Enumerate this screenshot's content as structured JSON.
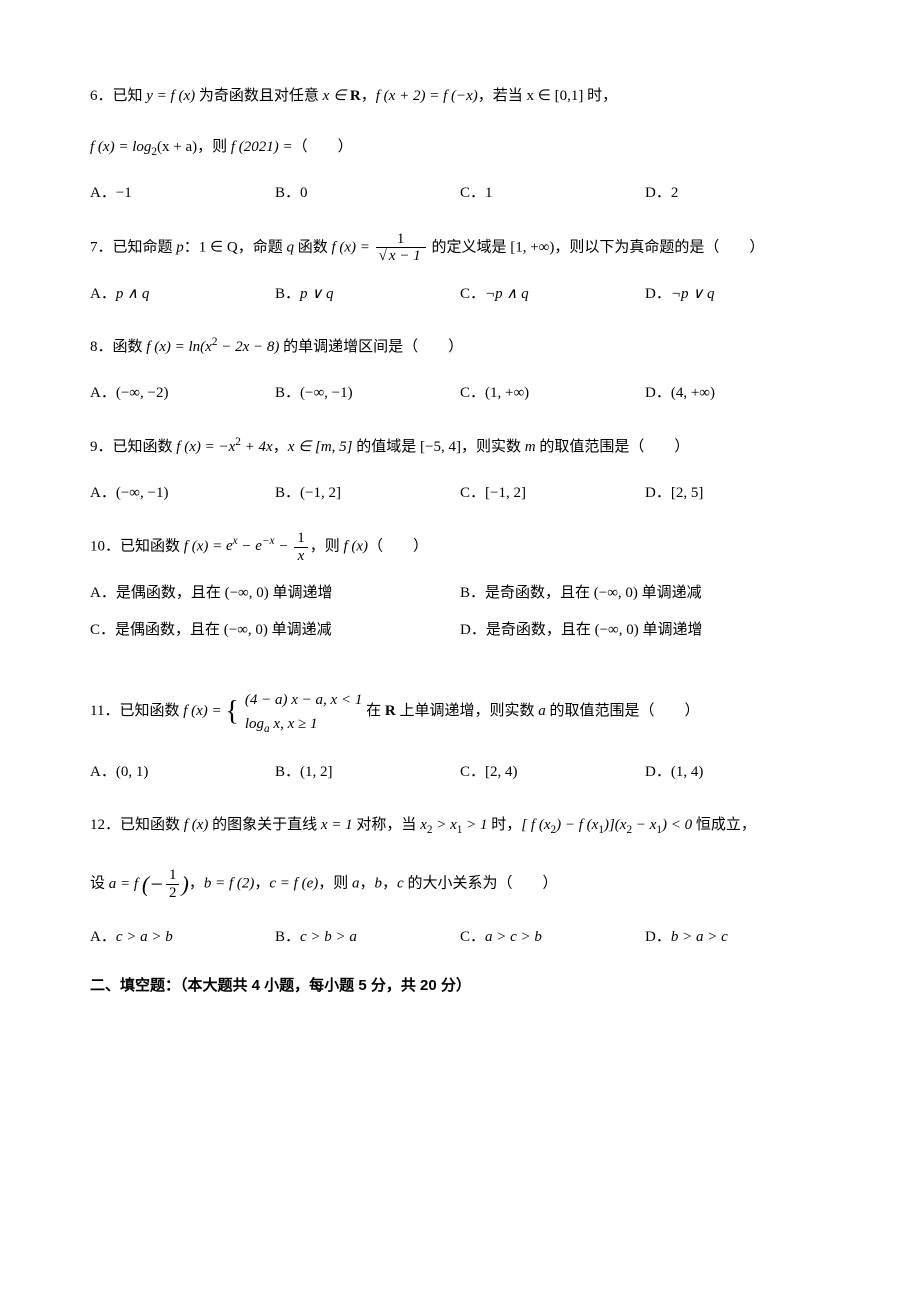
{
  "q6": {
    "num": "6．",
    "stem_a": "已知 ",
    "stem_b": " 为奇函数且对任意 ",
    "stem_c": "，",
    "stem_d": "，若当 ",
    "stem_e": " 时，",
    "stem2_a": "，则 ",
    "stem2_b": "（　　）",
    "math_y": "y = f (x)",
    "math_xr": "x ∈ R",
    "math_eq": "f (x + 2) = f (−x)",
    "math_dom": "x ∈ [0,1]",
    "math_fx": "f (x) = log",
    "math_sub": "2",
    "math_arg": "(x + a)",
    "math_f2021": "f (2021) =",
    "A": "A．",
    "A_val": "−1",
    "B": "B．",
    "B_val": "0",
    "C": "C．",
    "C_val": "1",
    "D": "D．",
    "D_val": "2"
  },
  "q7": {
    "num": "7．",
    "stem_a": "已知命题 ",
    "stem_p": "p",
    "stem_b": "：",
    "math_1q": "1 ∈ Q",
    "stem_c": "，命题 ",
    "stem_q": "q",
    "stem_d": " 函数 ",
    "math_fx": "f (x) =",
    "frac_num": "1",
    "frac_den_rad": "√",
    "frac_den": "x − 1",
    "stem_e": " 的定义域是 ",
    "math_dom": "[1, +∞)",
    "stem_f": "，则以下为真命题的是（　　）",
    "A": "A．",
    "A_val": "p ∧ q",
    "B": "B．",
    "B_val": "p ∨ q",
    "C": "C．",
    "C_val": "¬p ∧ q",
    "D": "D．",
    "D_val": "¬p ∨ q"
  },
  "q8": {
    "num": "8．",
    "stem_a": "函数 ",
    "math_fx": "f (x) = ln(x² − 2x − 8)",
    "stem_b": " 的单调递增区间是（　　）",
    "A": "A．",
    "A_val": "(−∞, −2)",
    "B": "B．",
    "B_val": "(−∞, −1)",
    "C": "C．",
    "C_val": "(1, +∞)",
    "D": "D．",
    "D_val": "(4, +∞)"
  },
  "q9": {
    "num": "9．",
    "stem_a": "已知函数 ",
    "math_fx": "f (x) = −x² + 4x",
    "stem_b": "，",
    "math_dom": "x ∈ [m, 5]",
    "stem_c": " 的值域是 ",
    "math_range": "[−5, 4]",
    "stem_d": "，则实数 ",
    "math_m": "m",
    "stem_e": " 的取值范围是（　　）",
    "A": "A．",
    "A_val": "(−∞, −1)",
    "B": "B．",
    "B_val": "(−1, 2]",
    "C": "C．",
    "C_val": "[−1, 2]",
    "D": "D．",
    "D_val": "[2, 5]"
  },
  "q10": {
    "num": "10．",
    "stem_a": "已知函数 ",
    "math_fx": "f (x) = eˣ − e⁻ˣ −",
    "frac_num": "1",
    "frac_den": "x",
    "stem_b": "，则 ",
    "math_fx2": "f (x)",
    "stem_c": "（　　）",
    "A": "A．是偶函数，且在 ",
    "A_int": "(−∞, 0)",
    "A_tail": " 单调递增",
    "B": "B．是奇函数，且在 ",
    "B_int": "(−∞, 0)",
    "B_tail": " 单调递减",
    "C": "C．是偶函数，且在 ",
    "C_int": "(−∞, 0)",
    "C_tail": " 单调递减",
    "D": "D．是奇函数，且在 ",
    "D_int": "(−∞, 0)",
    "D_tail": " 单调递增"
  },
  "q11": {
    "num": "11．",
    "stem_a": "已知函数 ",
    "math_fx": "f (x) =",
    "piece1": "(4 − a) x − a, x < 1",
    "piece2_a": "log",
    "piece2_sub": "a",
    "piece2_b": " x, x ≥ 1",
    "stem_b": " 在 ",
    "math_R": "R",
    "stem_c": " 上单调递增，则实数 ",
    "math_a": "a",
    "stem_d": " 的取值范围是（　　）",
    "A": "A．",
    "A_val": "(0, 1)",
    "B": "B．",
    "B_val": "(1, 2]",
    "C": "C．",
    "C_val": "[2, 4)",
    "D": "D．",
    "D_val": "(1, 4)"
  },
  "q12": {
    "num": "12．",
    "stem_a": "已知函数 ",
    "math_fx": "f (x)",
    "stem_b": " 的图象关于直线 ",
    "math_x1": "x = 1",
    "stem_c": " 对称，当 ",
    "math_cond": "x₂ > x₁ > 1",
    "stem_d": " 时，",
    "math_ineq": "[ f (x₂) − f (x₁)](x₂ − x₁) < 0",
    "stem_e": " 恒成立，",
    "stem2_a": "设 ",
    "math_a": "a = f",
    "frac_a_num": "1",
    "frac_a_den": "2",
    "math_a_open": "(−",
    "math_a_close": ")",
    "stem2_b": "，",
    "math_b": "b = f (2)",
    "stem2_c": "，",
    "math_c": "c = f (e)",
    "stem2_d": "，则 ",
    "var_a": "a",
    "stem2_e": "，",
    "var_b": "b",
    "stem2_f": "，",
    "var_c": "c",
    "stem2_g": " 的大小关系为（　　）",
    "A": "A．",
    "A_val": "c > a > b",
    "B": "B．",
    "B_val": "c > b > a",
    "C": "C．",
    "C_val": "a > c > b",
    "D": "D．",
    "D_val": "b > a > c"
  },
  "section2": "二、填空题：（本大题共 4 小题，每小题 5 分，共 20 分）"
}
